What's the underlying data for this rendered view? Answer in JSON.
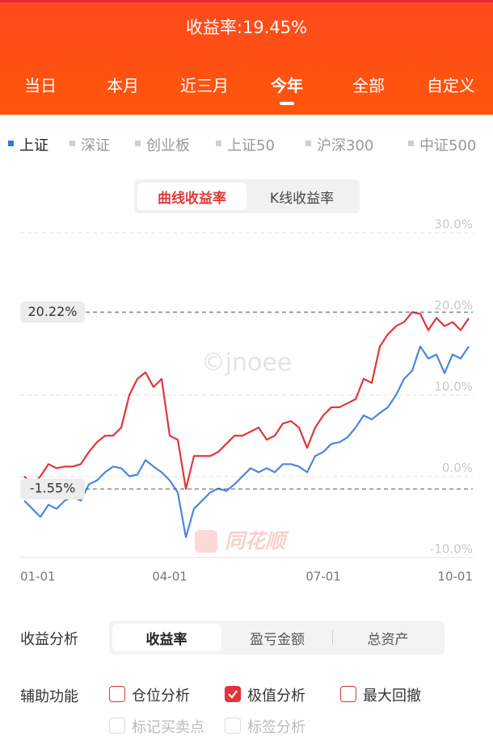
{
  "header": {
    "title": "收益率:19.45%",
    "tabs": [
      "当日",
      "本月",
      "近三月",
      "今年",
      "全部",
      "自定义"
    ],
    "selected_tab": 3
  },
  "indices": {
    "items": [
      "上证",
      "深证",
      "创业板",
      "上证50",
      "沪深300",
      "中证500"
    ],
    "selected": 0
  },
  "mode_toggle": {
    "options": [
      "曲线收益率",
      "K线收益率"
    ],
    "selected": 0
  },
  "chart_data": {
    "type": "line",
    "categories": [
      "01-01",
      null,
      null,
      null,
      null,
      null,
      null,
      null,
      null,
      null,
      null,
      null,
      null,
      null,
      null,
      null,
      null,
      null,
      "04-01",
      null,
      null,
      null,
      null,
      null,
      null,
      null,
      null,
      null,
      null,
      null,
      null,
      null,
      null,
      null,
      null,
      null,
      null,
      "07-01",
      null,
      null,
      null,
      null,
      null,
      null,
      null,
      null,
      null,
      null,
      null,
      null,
      null,
      null,
      null,
      null,
      null,
      "10-01"
    ],
    "series": [
      {
        "color": "#4a86df",
        "values": [
          -3,
          -4,
          -5,
          -3.5,
          -4,
          -3,
          -2.5,
          -3,
          -1,
          -0.5,
          0.5,
          1.2,
          1,
          0,
          0.2,
          2,
          1.2,
          0.5,
          -0.5,
          -2,
          -7.5,
          -4,
          -3,
          -2,
          -1.5,
          -1.8,
          -1,
          0,
          1,
          0.5,
          1,
          0.5,
          1.5,
          1.5,
          1.2,
          0.5,
          2.5,
          3,
          4,
          4.2,
          4.8,
          6,
          7.5,
          7,
          7.8,
          8.5,
          10,
          12,
          13,
          16,
          14.5,
          15,
          12.7,
          15,
          14.5,
          16
        ]
      },
      {
        "color": "#e0363b",
        "values": [
          0,
          -1,
          0,
          1.5,
          1,
          1.2,
          1.2,
          1.5,
          3,
          4.2,
          5,
          5,
          6,
          10,
          12,
          12.8,
          11,
          12,
          5,
          4.5,
          -1.55,
          2.5,
          2.5,
          2.5,
          3,
          4,
          5,
          5,
          5.5,
          6,
          4.5,
          5,
          6.5,
          6.8,
          6,
          3.5,
          6,
          7.5,
          8.5,
          8.5,
          9,
          9.5,
          12,
          11.5,
          16,
          17.5,
          18.5,
          19,
          20.22,
          20,
          18,
          19.5,
          18.5,
          19,
          18,
          19.45
        ]
      }
    ],
    "ylim": [
      -10,
      30
    ],
    "yticks": [
      {
        "value": -10,
        "label": "-10.0%"
      },
      {
        "value": 0,
        "label": "0.0%"
      },
      {
        "value": 10,
        "label": "10.0%"
      },
      {
        "value": 20,
        "label": "20.0%"
      },
      {
        "value": 30,
        "label": "30.0%"
      }
    ],
    "grid": true,
    "annotations": [
      {
        "value": 20.22,
        "label": "20.22%"
      },
      {
        "value": -1.55,
        "label": "-1.55%"
      }
    ]
  },
  "watermarks": {
    "text": "©jnoee",
    "logo": "同花顺"
  },
  "analysis": {
    "label": "收益分析",
    "options": [
      "收益率",
      "盈亏金额",
      "总资产"
    ],
    "selected": 0
  },
  "aux": {
    "label": "辅助功能",
    "options": [
      {
        "label": "仓位分析",
        "checked": false,
        "enabled": true
      },
      {
        "label": "极值分析",
        "checked": true,
        "enabled": true
      },
      {
        "label": "最大回撤",
        "checked": false,
        "enabled": true
      },
      {
        "label": "标记买卖点",
        "checked": false,
        "enabled": false
      },
      {
        "label": "标签分析",
        "checked": false,
        "enabled": false
      }
    ]
  }
}
